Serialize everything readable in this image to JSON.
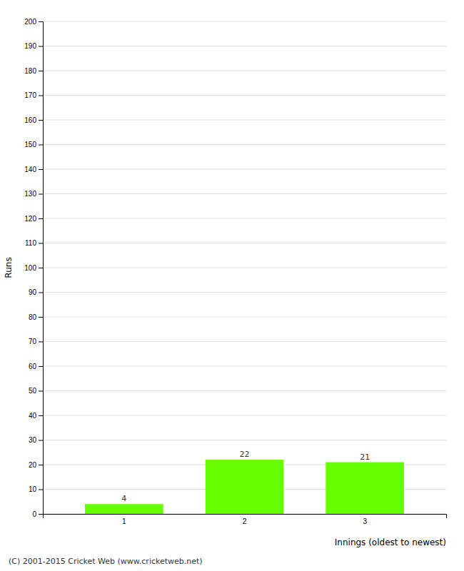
{
  "chart_data": {
    "type": "bar",
    "categories": [
      "1",
      "2",
      "3"
    ],
    "values": [
      4,
      22,
      21
    ],
    "color": "#66ff00",
    "x_label": "Innings (oldest to newest)",
    "y_label": "Runs",
    "ylim": [
      0,
      200
    ],
    "yticks": [
      0,
      10,
      20,
      30,
      40,
      50,
      60,
      70,
      80,
      90,
      100,
      110,
      120,
      130,
      140,
      150,
      160,
      170,
      180,
      190,
      200
    ],
    "grid": true,
    "data_labels": true,
    "annotations": [
      "(C) 2001-2015 Cricket Web (www.cricketweb.net)"
    ]
  }
}
